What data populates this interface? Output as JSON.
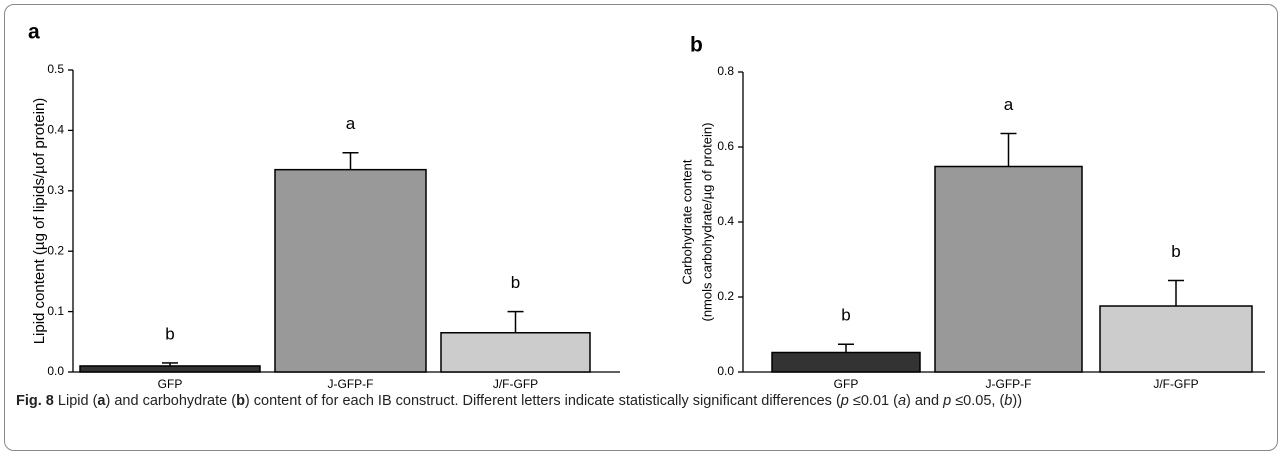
{
  "chart_data": [
    {
      "type": "bar",
      "panel": "a",
      "ylabel": "Lipid content (µg of lipids/µof protein)",
      "categories": [
        "GFP",
        "J-GFP-F",
        "J/F-GFP"
      ],
      "values": [
        0.01,
        0.335,
        0.065
      ],
      "errors": [
        0.005,
        0.028,
        0.035
      ],
      "annotations": [
        "b",
        "a",
        "b"
      ],
      "colors": [
        "#333333",
        "#999999",
        "#cccccc"
      ],
      "ylim": [
        0,
        0.5
      ],
      "yticks": [
        {
          "value": 0,
          "label": "0.0"
        },
        0.1,
        0.2,
        0.3,
        0.4,
        0.5
      ]
    },
    {
      "type": "bar",
      "panel": "b",
      "ylabel": [
        "Carbohydrate content",
        "(nmols carbohydrate/µg of protein)"
      ],
      "categories": [
        "GFP",
        "J-GFP-F",
        "J/F-GFP"
      ],
      "values": [
        0.052,
        0.548,
        0.176
      ],
      "errors": [
        0.022,
        0.088,
        0.068
      ],
      "annotations": [
        "b",
        "a",
        "b"
      ],
      "colors": [
        "#333333",
        "#999999",
        "#cccccc"
      ],
      "ylim": [
        0,
        0.8
      ],
      "yticks": [
        {
          "value": 0,
          "label": "0.0"
        },
        0.2,
        0.4,
        0.6,
        0.8
      ]
    }
  ],
  "caption": [
    {
      "text": "Fig. 8",
      "style": "bold"
    },
    {
      "text": "  Lipid (",
      "style": "normal"
    },
    {
      "text": "a",
      "style": "bold"
    },
    {
      "text": ") and carbohydrate (",
      "style": "normal"
    },
    {
      "text": "b",
      "style": "bold"
    },
    {
      "text": ") content of for each IB construct. Different letters indicate statistically significant differences (",
      "style": "normal"
    },
    {
      "text": "p",
      "style": "italic"
    },
    {
      "text": " ≤0.01 (",
      "style": "normal"
    },
    {
      "text": "a",
      "style": "italic"
    },
    {
      "text": ") and ",
      "style": "normal"
    },
    {
      "text": "p",
      "style": "italic"
    },
    {
      "text": " ≤0.05, (",
      "style": "normal"
    },
    {
      "text": "b",
      "style": "italic"
    },
    {
      "text": "))",
      "style": "normal"
    }
  ]
}
